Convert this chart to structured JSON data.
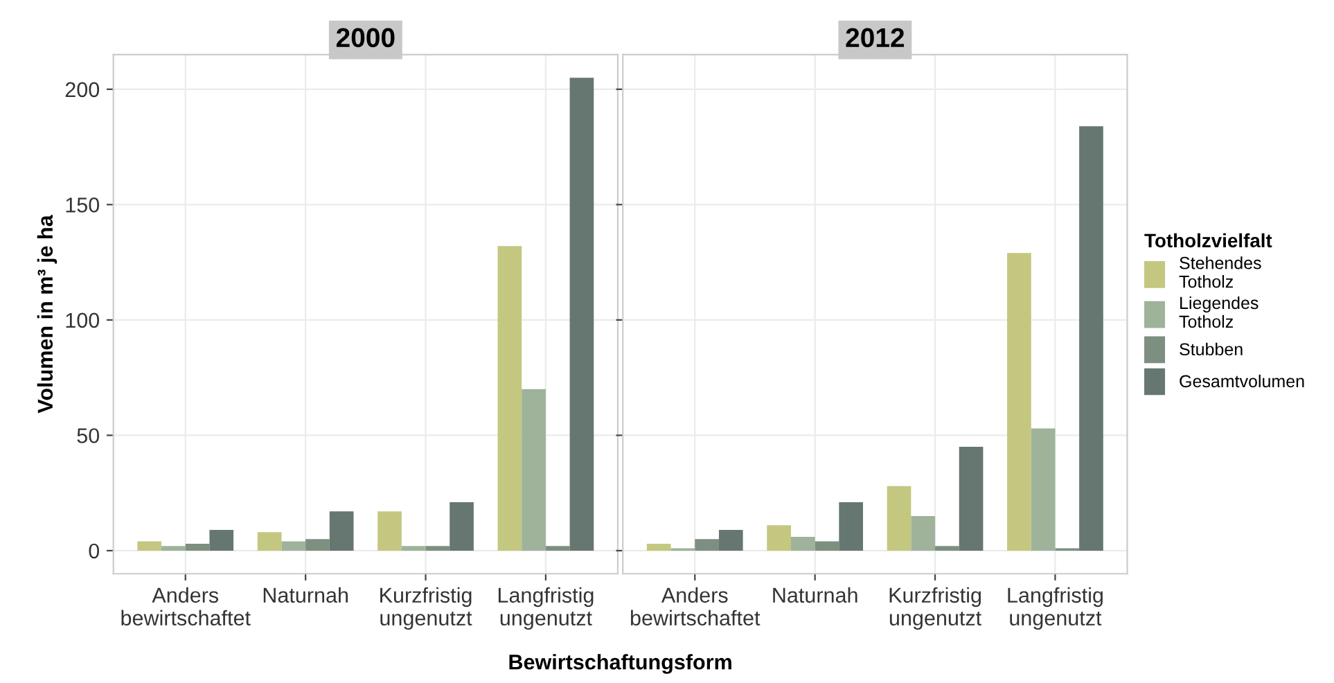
{
  "chart_data": [
    {
      "type": "bar",
      "title": "2000",
      "ylabel": "Volumen in m³ je ha",
      "xlabel": "Bewirtschaftungsform",
      "categories": [
        "Anders\nbewirtschaftet",
        "Naturnah",
        "Kurzfristig\nungenutzt",
        "Langfristig\nungenutzt"
      ],
      "series": [
        {
          "color": "#c4c77f",
          "values": [
            4,
            8,
            17,
            132
          ]
        },
        {
          "color": "#9eb39a",
          "values": [
            2,
            4,
            2,
            70
          ]
        },
        {
          "color": "#7d8f80",
          "values": [
            3,
            5,
            2,
            2
          ]
        },
        {
          "color": "#657770",
          "values": [
            9,
            17,
            21,
            205
          ]
        }
      ],
      "ylim": [
        -10,
        215
      ],
      "yticks": [
        0,
        50,
        100,
        150,
        200
      ],
      "grid": true
    },
    {
      "type": "bar",
      "title": "2012",
      "categories": [
        "Anders\nbewirtschaftet",
        "Naturnah",
        "Kurzfristig\nungenutzt",
        "Langfristig\nungenutzt"
      ],
      "series": [
        {
          "name": "Stehendes\nTotholz",
          "color": "#c4c77f",
          "values": [
            3,
            11,
            28,
            129
          ]
        },
        {
          "name": "Liegendes\nTotholz",
          "color": "#9eb39a",
          "values": [
            1,
            6,
            15,
            53
          ]
        },
        {
          "name": "Stubben",
          "color": "#7d8f80",
          "values": [
            5,
            4,
            2,
            1
          ]
        },
        {
          "name": "Gesamtvolumen",
          "color": "#657770",
          "values": [
            9,
            21,
            45,
            184
          ]
        }
      ],
      "ylim": [
        -10,
        215
      ],
      "yticks": [
        0,
        50,
        100,
        150,
        200
      ],
      "grid": true,
      "legend": "right",
      "legend_title": "Totholzvielfalt",
      "tick_labels": "x"
    }
  ]
}
